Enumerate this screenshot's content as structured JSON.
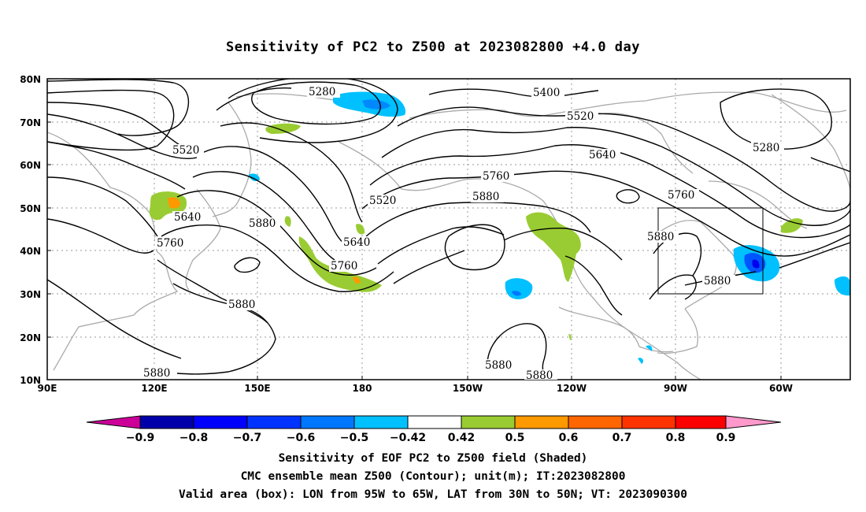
{
  "title": "Sensitivity of PC2 to Z500 at 2023082800 +4.0 day",
  "map": {
    "lon_range": [
      "90E",
      "30W"
    ],
    "lat_range": [
      "10N",
      "80N"
    ],
    "lon_ticks": [
      "90E",
      "120E",
      "150E",
      "180",
      "150W",
      "120W",
      "90W",
      "60W"
    ],
    "lat_ticks": [
      "80N",
      "70N",
      "60N",
      "50N",
      "40N",
      "30N",
      "20N",
      "10N"
    ],
    "gridlines": "dotted",
    "valid_box": {
      "lon": [
        "95W",
        "65W"
      ],
      "lat": [
        "30N",
        "50N"
      ]
    },
    "contour_labels": [
      "5280",
      "5400",
      "5520",
      "5520",
      "5640",
      "5280",
      "5520",
      "5640",
      "5760",
      "5880",
      "5640",
      "5760",
      "5880",
      "5760",
      "5880",
      "5760",
      "5640",
      "5880",
      "5880",
      "5880",
      "5880",
      "5880",
      "5880"
    ],
    "shaded_regions": [
      {
        "name": "positive",
        "level": "0.42-0.5",
        "color": "#99cc33"
      },
      {
        "name": "positive",
        "level": "0.5-0.6",
        "color": "#ff9900"
      },
      {
        "name": "negative",
        "level": "-0.5 to -0.42",
        "color": "#00c0ff"
      },
      {
        "name": "negative",
        "level": "-0.7 to -0.6",
        "color": "#0055ff"
      }
    ]
  },
  "colorbar": {
    "labels": [
      "−0.9",
      "−0.8",
      "−0.7",
      "−0.6",
      "−0.5",
      "−0.42",
      "0.42",
      "0.5",
      "0.6",
      "0.7",
      "0.8",
      "0.9"
    ],
    "colors": [
      "#cc0099",
      "#0000aa",
      "#0000ff",
      "#0033ff",
      "#0077ff",
      "#00c0ff",
      "#ffffff",
      "#99cc33",
      "#ff9900",
      "#ff6600",
      "#ff3300",
      "#ff0000",
      "#ff99cc"
    ]
  },
  "captions": {
    "line1": "Sensitivity of EOF PC2 to Z500 field (Shaded)",
    "line2": "CMC ensemble mean Z500 (Contour); unit(m); IT:2023082800",
    "line3": "Valid area (box): LON from 95W to 65W, LAT from 30N to 50N; VT: 2023090300"
  }
}
